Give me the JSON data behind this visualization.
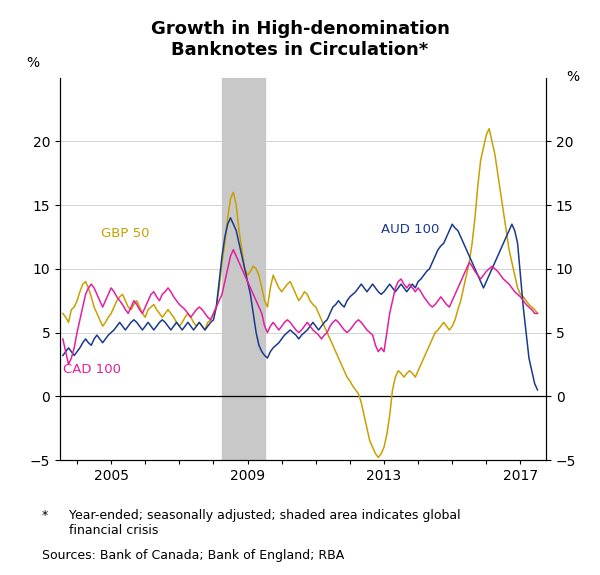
{
  "title": "Growth in High-denomination\nBanknotes in Circulation*",
  "title_fontsize": 13,
  "ylabel_left": "%",
  "ylabel_right": "%",
  "ylim": [
    -5,
    25
  ],
  "yticks": [
    -5,
    0,
    5,
    10,
    15,
    20
  ],
  "xlim_start": 2003.5,
  "xlim_end": 2017.75,
  "shaded_start": 2008.25,
  "shaded_end": 2009.5,
  "shaded_color": "#c8c8c8",
  "colors": {
    "GBP 50": "#c8a000",
    "AUD 100": "#1a3a8c",
    "CAD 100": "#e020a0"
  },
  "footnote_star": "*",
  "footnote_text": "Year-ended; seasonally adjusted; shaded area indicates global\nfinancial crisis",
  "sources": "Sources: Bank of Canada; Bank of England; RBA",
  "GBP_50_x": [
    2003.583,
    2003.667,
    2003.75,
    2003.833,
    2003.917,
    2004.0,
    2004.083,
    2004.167,
    2004.25,
    2004.333,
    2004.417,
    2004.5,
    2004.583,
    2004.667,
    2004.75,
    2004.833,
    2004.917,
    2005.0,
    2005.083,
    2005.167,
    2005.25,
    2005.333,
    2005.417,
    2005.5,
    2005.583,
    2005.667,
    2005.75,
    2005.833,
    2005.917,
    2006.0,
    2006.083,
    2006.167,
    2006.25,
    2006.333,
    2006.417,
    2006.5,
    2006.583,
    2006.667,
    2006.75,
    2006.833,
    2006.917,
    2007.0,
    2007.083,
    2007.167,
    2007.25,
    2007.333,
    2007.417,
    2007.5,
    2007.583,
    2007.667,
    2007.75,
    2007.833,
    2007.917,
    2008.0,
    2008.083,
    2008.167,
    2008.25,
    2008.333,
    2008.417,
    2008.5,
    2008.583,
    2008.667,
    2008.75,
    2008.833,
    2008.917,
    2009.0,
    2009.083,
    2009.167,
    2009.25,
    2009.333,
    2009.417,
    2009.5,
    2009.583,
    2009.667,
    2009.75,
    2009.833,
    2009.917,
    2010.0,
    2010.083,
    2010.167,
    2010.25,
    2010.333,
    2010.417,
    2010.5,
    2010.583,
    2010.667,
    2010.75,
    2010.833,
    2010.917,
    2011.0,
    2011.083,
    2011.167,
    2011.25,
    2011.333,
    2011.417,
    2011.5,
    2011.583,
    2011.667,
    2011.75,
    2011.833,
    2011.917,
    2012.0,
    2012.083,
    2012.167,
    2012.25,
    2012.333,
    2012.417,
    2012.5,
    2012.583,
    2012.667,
    2012.75,
    2012.833,
    2012.917,
    2013.0,
    2013.083,
    2013.167,
    2013.25,
    2013.333,
    2013.417,
    2013.5,
    2013.583,
    2013.667,
    2013.75,
    2013.833,
    2013.917,
    2014.0,
    2014.083,
    2014.167,
    2014.25,
    2014.333,
    2014.417,
    2014.5,
    2014.583,
    2014.667,
    2014.75,
    2014.833,
    2014.917,
    2015.0,
    2015.083,
    2015.167,
    2015.25,
    2015.333,
    2015.417,
    2015.5,
    2015.583,
    2015.667,
    2015.75,
    2015.833,
    2015.917,
    2016.0,
    2016.083,
    2016.167,
    2016.25,
    2016.333,
    2016.417,
    2016.5,
    2016.583,
    2016.667,
    2016.75,
    2016.833,
    2016.917,
    2017.0,
    2017.083,
    2017.167,
    2017.25,
    2017.333,
    2017.417,
    2017.5
  ],
  "GBP_50_y": [
    6.5,
    6.2,
    5.8,
    6.8,
    7.0,
    7.5,
    8.2,
    8.8,
    9.0,
    8.5,
    7.8,
    7.0,
    6.5,
    6.0,
    5.5,
    5.8,
    6.2,
    6.5,
    7.0,
    7.5,
    7.8,
    8.0,
    7.5,
    7.0,
    6.8,
    7.2,
    7.5,
    7.0,
    6.5,
    6.2,
    6.8,
    7.0,
    7.2,
    6.8,
    6.5,
    6.2,
    6.5,
    6.8,
    6.5,
    6.2,
    5.8,
    5.5,
    5.8,
    6.2,
    6.5,
    6.2,
    5.8,
    5.5,
    5.8,
    5.5,
    5.2,
    5.8,
    6.0,
    6.5,
    7.0,
    8.5,
    10.5,
    12.0,
    14.0,
    15.5,
    16.0,
    15.0,
    13.0,
    11.5,
    10.0,
    9.5,
    9.8,
    10.2,
    10.0,
    9.5,
    8.5,
    7.5,
    7.0,
    8.5,
    9.5,
    9.0,
    8.5,
    8.2,
    8.5,
    8.8,
    9.0,
    8.5,
    8.0,
    7.5,
    7.8,
    8.2,
    8.0,
    7.5,
    7.2,
    7.0,
    6.5,
    6.0,
    5.5,
    5.0,
    4.5,
    4.0,
    3.5,
    3.0,
    2.5,
    2.0,
    1.5,
    1.2,
    0.8,
    0.5,
    0.2,
    -0.5,
    -1.5,
    -2.5,
    -3.5,
    -4.0,
    -4.5,
    -4.8,
    -4.5,
    -4.0,
    -3.0,
    -1.5,
    0.5,
    1.5,
    2.0,
    1.8,
    1.5,
    1.8,
    2.0,
    1.8,
    1.5,
    2.0,
    2.5,
    3.0,
    3.5,
    4.0,
    4.5,
    5.0,
    5.2,
    5.5,
    5.8,
    5.5,
    5.2,
    5.5,
    6.0,
    6.8,
    7.5,
    8.5,
    9.5,
    10.5,
    12.0,
    14.0,
    16.5,
    18.5,
    19.5,
    20.5,
    21.0,
    20.0,
    19.0,
    17.5,
    16.0,
    14.5,
    13.0,
    11.5,
    10.5,
    9.5,
    8.5,
    8.0,
    7.8,
    7.5,
    7.2,
    7.0,
    6.8,
    6.5
  ],
  "AUD_100_x": [
    2003.583,
    2003.667,
    2003.75,
    2003.833,
    2003.917,
    2004.0,
    2004.083,
    2004.167,
    2004.25,
    2004.333,
    2004.417,
    2004.5,
    2004.583,
    2004.667,
    2004.75,
    2004.833,
    2004.917,
    2005.0,
    2005.083,
    2005.167,
    2005.25,
    2005.333,
    2005.417,
    2005.5,
    2005.583,
    2005.667,
    2005.75,
    2005.833,
    2005.917,
    2006.0,
    2006.083,
    2006.167,
    2006.25,
    2006.333,
    2006.417,
    2006.5,
    2006.583,
    2006.667,
    2006.75,
    2006.833,
    2006.917,
    2007.0,
    2007.083,
    2007.167,
    2007.25,
    2007.333,
    2007.417,
    2007.5,
    2007.583,
    2007.667,
    2007.75,
    2007.833,
    2007.917,
    2008.0,
    2008.083,
    2008.167,
    2008.25,
    2008.333,
    2008.417,
    2008.5,
    2008.583,
    2008.667,
    2008.75,
    2008.833,
    2008.917,
    2009.0,
    2009.083,
    2009.167,
    2009.25,
    2009.333,
    2009.417,
    2009.5,
    2009.583,
    2009.667,
    2009.75,
    2009.833,
    2009.917,
    2010.0,
    2010.083,
    2010.167,
    2010.25,
    2010.333,
    2010.417,
    2010.5,
    2010.583,
    2010.667,
    2010.75,
    2010.833,
    2010.917,
    2011.0,
    2011.083,
    2011.167,
    2011.25,
    2011.333,
    2011.417,
    2011.5,
    2011.583,
    2011.667,
    2011.75,
    2011.833,
    2011.917,
    2012.0,
    2012.083,
    2012.167,
    2012.25,
    2012.333,
    2012.417,
    2012.5,
    2012.583,
    2012.667,
    2012.75,
    2012.833,
    2012.917,
    2013.0,
    2013.083,
    2013.167,
    2013.25,
    2013.333,
    2013.417,
    2013.5,
    2013.583,
    2013.667,
    2013.75,
    2013.833,
    2013.917,
    2014.0,
    2014.083,
    2014.167,
    2014.25,
    2014.333,
    2014.417,
    2014.5,
    2014.583,
    2014.667,
    2014.75,
    2014.833,
    2014.917,
    2015.0,
    2015.083,
    2015.167,
    2015.25,
    2015.333,
    2015.417,
    2015.5,
    2015.583,
    2015.667,
    2015.75,
    2015.833,
    2015.917,
    2016.0,
    2016.083,
    2016.167,
    2016.25,
    2016.333,
    2016.417,
    2016.5,
    2016.583,
    2016.667,
    2016.75,
    2016.833,
    2016.917,
    2017.0,
    2017.083,
    2017.167,
    2017.25,
    2017.333,
    2017.417,
    2017.5
  ],
  "AUD_100_y": [
    3.2,
    3.5,
    3.8,
    3.5,
    3.2,
    3.5,
    3.8,
    4.2,
    4.5,
    4.2,
    4.0,
    4.5,
    4.8,
    4.5,
    4.2,
    4.5,
    4.8,
    5.0,
    5.2,
    5.5,
    5.8,
    5.5,
    5.2,
    5.5,
    5.8,
    6.0,
    5.8,
    5.5,
    5.2,
    5.5,
    5.8,
    5.5,
    5.2,
    5.5,
    5.8,
    6.0,
    5.8,
    5.5,
    5.2,
    5.5,
    5.8,
    5.5,
    5.2,
    5.5,
    5.8,
    5.5,
    5.2,
    5.5,
    5.8,
    5.5,
    5.2,
    5.5,
    5.8,
    6.0,
    7.0,
    9.0,
    11.0,
    12.5,
    13.5,
    14.0,
    13.5,
    13.0,
    12.0,
    11.0,
    10.0,
    9.0,
    8.0,
    6.5,
    5.0,
    4.0,
    3.5,
    3.2,
    3.0,
    3.5,
    3.8,
    4.0,
    4.2,
    4.5,
    4.8,
    5.0,
    5.2,
    5.0,
    4.8,
    4.5,
    4.8,
    5.0,
    5.2,
    5.5,
    5.8,
    5.5,
    5.2,
    5.5,
    5.8,
    6.0,
    6.5,
    7.0,
    7.2,
    7.5,
    7.2,
    7.0,
    7.5,
    7.8,
    8.0,
    8.2,
    8.5,
    8.8,
    8.5,
    8.2,
    8.5,
    8.8,
    8.5,
    8.2,
    8.0,
    8.2,
    8.5,
    8.8,
    8.5,
    8.2,
    8.5,
    8.8,
    8.5,
    8.2,
    8.5,
    8.8,
    8.5,
    9.0,
    9.2,
    9.5,
    9.8,
    10.0,
    10.5,
    11.0,
    11.5,
    11.8,
    12.0,
    12.5,
    13.0,
    13.5,
    13.2,
    13.0,
    12.5,
    12.0,
    11.5,
    11.0,
    10.5,
    10.0,
    9.5,
    9.0,
    8.5,
    9.0,
    9.5,
    10.0,
    10.5,
    11.0,
    11.5,
    12.0,
    12.5,
    13.0,
    13.5,
    13.0,
    12.0,
    9.5,
    7.0,
    5.0,
    3.0,
    2.0,
    1.0,
    0.5
  ],
  "CAD_100_x": [
    2003.583,
    2003.667,
    2003.75,
    2003.833,
    2003.917,
    2004.0,
    2004.083,
    2004.167,
    2004.25,
    2004.333,
    2004.417,
    2004.5,
    2004.583,
    2004.667,
    2004.75,
    2004.833,
    2004.917,
    2005.0,
    2005.083,
    2005.167,
    2005.25,
    2005.333,
    2005.417,
    2005.5,
    2005.583,
    2005.667,
    2005.75,
    2005.833,
    2005.917,
    2006.0,
    2006.083,
    2006.167,
    2006.25,
    2006.333,
    2006.417,
    2006.5,
    2006.583,
    2006.667,
    2006.75,
    2006.833,
    2006.917,
    2007.0,
    2007.083,
    2007.167,
    2007.25,
    2007.333,
    2007.417,
    2007.5,
    2007.583,
    2007.667,
    2007.75,
    2007.833,
    2007.917,
    2008.0,
    2008.083,
    2008.167,
    2008.25,
    2008.333,
    2008.417,
    2008.5,
    2008.583,
    2008.667,
    2008.75,
    2008.833,
    2008.917,
    2009.0,
    2009.083,
    2009.167,
    2009.25,
    2009.333,
    2009.417,
    2009.5,
    2009.583,
    2009.667,
    2009.75,
    2009.833,
    2009.917,
    2010.0,
    2010.083,
    2010.167,
    2010.25,
    2010.333,
    2010.417,
    2010.5,
    2010.583,
    2010.667,
    2010.75,
    2010.833,
    2010.917,
    2011.0,
    2011.083,
    2011.167,
    2011.25,
    2011.333,
    2011.417,
    2011.5,
    2011.583,
    2011.667,
    2011.75,
    2011.833,
    2011.917,
    2012.0,
    2012.083,
    2012.167,
    2012.25,
    2012.333,
    2012.417,
    2012.5,
    2012.583,
    2012.667,
    2012.75,
    2012.833,
    2012.917,
    2013.0,
    2013.083,
    2013.167,
    2013.25,
    2013.333,
    2013.417,
    2013.5,
    2013.583,
    2013.667,
    2013.75,
    2013.833,
    2013.917,
    2014.0,
    2014.083,
    2014.167,
    2014.25,
    2014.333,
    2014.417,
    2014.5,
    2014.583,
    2014.667,
    2014.75,
    2014.833,
    2014.917,
    2015.0,
    2015.083,
    2015.167,
    2015.25,
    2015.333,
    2015.417,
    2015.5,
    2015.583,
    2015.667,
    2015.75,
    2015.833,
    2015.917,
    2016.0,
    2016.083,
    2016.167,
    2016.25,
    2016.333,
    2016.417,
    2016.5,
    2016.583,
    2016.667,
    2016.75,
    2016.833,
    2016.917,
    2017.0,
    2017.083,
    2017.167,
    2017.25,
    2017.333,
    2017.417,
    2017.5
  ],
  "CAD_100_y": [
    4.5,
    3.5,
    2.5,
    3.0,
    3.8,
    5.0,
    6.0,
    7.0,
    8.0,
    8.5,
    8.8,
    8.5,
    8.0,
    7.5,
    7.0,
    7.5,
    8.0,
    8.5,
    8.2,
    7.8,
    7.5,
    7.2,
    6.8,
    6.5,
    7.0,
    7.5,
    7.2,
    6.8,
    6.5,
    7.0,
    7.5,
    8.0,
    8.2,
    7.8,
    7.5,
    8.0,
    8.2,
    8.5,
    8.2,
    7.8,
    7.5,
    7.2,
    7.0,
    6.8,
    6.5,
    6.2,
    6.5,
    6.8,
    7.0,
    6.8,
    6.5,
    6.2,
    6.0,
    6.5,
    7.0,
    7.5,
    8.0,
    9.0,
    10.0,
    11.0,
    11.5,
    11.0,
    10.5,
    10.0,
    9.5,
    9.0,
    8.5,
    8.0,
    7.5,
    7.0,
    6.5,
    5.5,
    5.0,
    5.5,
    5.8,
    5.5,
    5.2,
    5.5,
    5.8,
    6.0,
    5.8,
    5.5,
    5.2,
    5.0,
    5.2,
    5.5,
    5.8,
    5.5,
    5.2,
    5.0,
    4.8,
    4.5,
    4.8,
    5.0,
    5.5,
    5.8,
    6.0,
    5.8,
    5.5,
    5.2,
    5.0,
    5.2,
    5.5,
    5.8,
    6.0,
    5.8,
    5.5,
    5.2,
    5.0,
    4.8,
    4.0,
    3.5,
    3.8,
    3.5,
    5.0,
    6.5,
    7.5,
    8.5,
    9.0,
    9.2,
    8.8,
    8.5,
    8.8,
    8.5,
    8.2,
    8.5,
    8.2,
    7.8,
    7.5,
    7.2,
    7.0,
    7.2,
    7.5,
    7.8,
    7.5,
    7.2,
    7.0,
    7.5,
    8.0,
    8.5,
    9.0,
    9.5,
    10.0,
    10.5,
    10.2,
    9.8,
    9.5,
    9.2,
    9.5,
    9.8,
    10.0,
    10.2,
    10.0,
    9.8,
    9.5,
    9.2,
    9.0,
    8.8,
    8.5,
    8.2,
    8.0,
    7.8,
    7.5,
    7.2,
    7.0,
    6.8,
    6.5,
    6.5
  ]
}
